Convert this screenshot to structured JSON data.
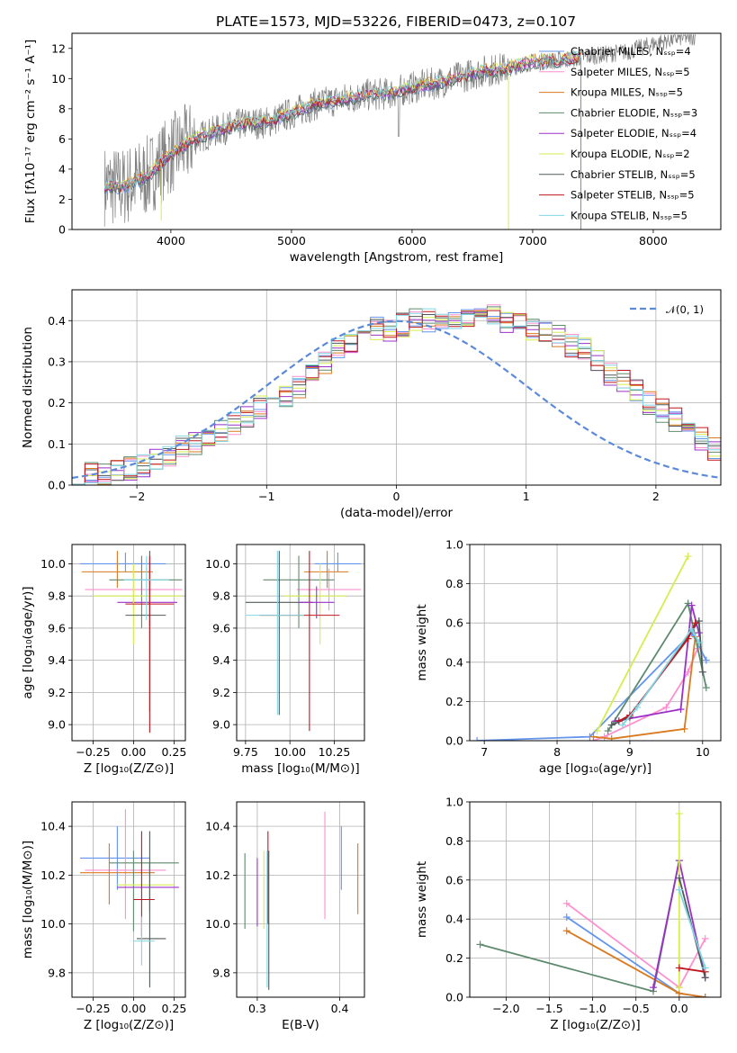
{
  "figure": {
    "title": "PLATE=1573, MJD=53226, FIBERID=0473, z=0.107"
  },
  "colors": {
    "chabrier_miles": "#6495ed",
    "salpeter_miles": "#ff8fcf",
    "kroupa_miles": "#d97a1f",
    "chabrier_elodie": "#5e8a6e",
    "salpeter_elodie": "#9b30c8",
    "kroupa_elodie": "#d6ec4f",
    "chabrier_stelib": "#505a5a",
    "salpeter_stelib": "#c0171f",
    "kroupa_stelib": "#80d6e4",
    "data": "#808080",
    "gaussian": "#5b8ad8"
  },
  "chart_data": [
    {
      "type": "line",
      "title": "PLATE=1573, MJD=53226, FIBERID=0473, z=0.107",
      "xlabel": "wavelength [Angstrom, rest frame]",
      "ylabel": "Flux [fλ10⁻¹⁷ erg cm⁻² s⁻¹ A⁻¹]",
      "xlim": [
        3180,
        8560
      ],
      "ylim": [
        0,
        13
      ],
      "xticks": [
        4000,
        5000,
        6000,
        7000,
        8000
      ],
      "yticks": [
        0,
        2,
        4,
        6,
        8,
        10,
        12
      ],
      "legend_position": "right",
      "legend": [
        "Chabrier MILES, Nₛₛₚ=4",
        "Salpeter MILES, Nₛₛₚ=5",
        "Kroupa MILES, Nₛₛₚ=5",
        "Chabrier ELODIE, Nₛₛₚ=3",
        "Salpeter ELODIE, Nₛₛₚ=4",
        "Kroupa ELODIE, Nₛₛₚ=2",
        "Chabrier STELIB, Nₛₛₚ=5",
        "Salpeter STELIB, Nₛₛₚ=5",
        "Kroupa STELIB, Nₛₛₚ=5"
      ],
      "continuum": {
        "x": [
          3450,
          3600,
          3800,
          4000,
          4200,
          4400,
          4600,
          4800,
          5000,
          5200,
          5400,
          5600,
          5800,
          6000,
          6200,
          6400,
          6600,
          6800,
          7000,
          7200,
          7400,
          7600,
          7800,
          8000,
          8200,
          8350
        ],
        "y": [
          2.9,
          2.8,
          3.5,
          5.0,
          6.0,
          6.6,
          7.0,
          7.1,
          7.7,
          8.3,
          8.6,
          8.9,
          9.0,
          9.4,
          9.7,
          10.1,
          10.5,
          10.7,
          11.1,
          11.2,
          11.4,
          11.6,
          11.8,
          12.3,
          12.7,
          12.8
        ]
      },
      "models_xlim": [
        3450,
        7400
      ]
    },
    {
      "type": "bar",
      "subtype": "step-histogram",
      "xlabel": "(data-model)/error",
      "ylabel": "Normed distribution",
      "xlim": [
        -2.5,
        2.5
      ],
      "ylim": [
        0,
        0.475
      ],
      "xticks": [
        -2,
        -1,
        0,
        1,
        2
      ],
      "yticks": [
        0.0,
        0.1,
        0.2,
        0.3,
        0.4
      ],
      "legend_position": "top-right",
      "legend": [
        "𝒩(0, 1)"
      ],
      "bin_width": 0.1,
      "base_hist": [
        0.02,
        0.025,
        0.03,
        0.035,
        0.04,
        0.05,
        0.06,
        0.07,
        0.09,
        0.1,
        0.11,
        0.13,
        0.15,
        0.17,
        0.19,
        0.21,
        0.22,
        0.24,
        0.27,
        0.3,
        0.33,
        0.35,
        0.37,
        0.38,
        0.38,
        0.39,
        0.4,
        0.4,
        0.41,
        0.4,
        0.4,
        0.4,
        0.41,
        0.4,
        0.39,
        0.38,
        0.37,
        0.36,
        0.34,
        0.33,
        0.3,
        0.27,
        0.25,
        0.23,
        0.2,
        0.18,
        0.16,
        0.14,
        0.11,
        0.09,
        0.08,
        0.07,
        0.06,
        0.05,
        0.04,
        0.04,
        0.03,
        0.03,
        0.03,
        0.03
      ]
    },
    {
      "type": "scatter",
      "subtype": "errorbar",
      "xlabel": "Z [log₁₀(Z/Z⊙)]",
      "ylabel": "age  [log₁₀(age/yr)]",
      "xlim": [
        -0.38,
        0.32
      ],
      "ylim": [
        8.9,
        10.12
      ],
      "xticks": [
        -0.25,
        0.0,
        0.25
      ],
      "xticklabels": [
        "−0.25",
        "0.00",
        "0.25"
      ],
      "yticks": [
        9.0,
        9.2,
        9.4,
        9.6,
        9.8,
        10.0
      ],
      "points": [
        {
          "series": "Chabrier MILES",
          "x": -0.05,
          "xerr": [
            0.28,
            0.25
          ],
          "y": 10.0,
          "yerr": [
            0.05,
            0.07
          ]
        },
        {
          "series": "Kroupa MILES",
          "x": -0.1,
          "xerr": [
            0.22,
            0.22
          ],
          "y": 9.95,
          "yerr": [
            0.1,
            0.13
          ]
        },
        {
          "series": "Salpeter MILES",
          "x": 0.0,
          "xerr": [
            0.3,
            0.3
          ],
          "y": 9.84,
          "yerr": [
            0.13,
            0.13
          ]
        },
        {
          "series": "Chabrier ELODIE",
          "x": 0.05,
          "xerr": [
            0.2,
            0.25
          ],
          "y": 9.9,
          "yerr": [
            0.3,
            0.15
          ]
        },
        {
          "series": "Salpeter ELODIE",
          "x": 0.1,
          "xerr": [
            0.2,
            0.17
          ],
          "y": 9.76,
          "yerr": [
            0.15,
            0.2
          ]
        },
        {
          "series": "Kroupa ELODIE",
          "x": 0.0,
          "xerr": [
            0.25,
            0.3
          ],
          "y": 9.8,
          "yerr": [
            0.3,
            0.2
          ]
        },
        {
          "series": "Chabrier STELIB",
          "x": 0.1,
          "xerr": [
            0.15,
            0.1
          ],
          "y": 9.68,
          "yerr": [
            0.6,
            0.4
          ]
        },
        {
          "series": "Salpeter STELIB",
          "x": 0.1,
          "xerr": [
            0.15,
            0.15
          ],
          "y": 9.75,
          "yerr": [
            0.8,
            0.3
          ]
        },
        {
          "series": "Kroupa STELIB",
          "x": 0.08,
          "xerr": [
            0.14,
            0.14
          ],
          "y": 9.9,
          "yerr": [
            0.25,
            0.15
          ]
        }
      ]
    },
    {
      "type": "scatter",
      "subtype": "errorbar",
      "xlabel": "mass [log₁₀(M/M⊙)]",
      "xlim": [
        9.7,
        10.42
      ],
      "ylim": [
        8.9,
        10.12
      ],
      "xticks": [
        9.75,
        10.0,
        10.25
      ],
      "xticklabels": [
        "9.75",
        "10.00",
        "10.25"
      ],
      "yticks": [
        9.0,
        9.2,
        9.4,
        9.6,
        9.8,
        10.0
      ],
      "points": [
        {
          "series": "Chabrier MILES",
          "x": 10.27,
          "xerr": [
            0.13,
            0.13
          ],
          "y": 10.0,
          "yerr": [
            0.05,
            0.07
          ]
        },
        {
          "series": "Kroupa MILES",
          "x": 10.21,
          "xerr": [
            0.13,
            0.12
          ],
          "y": 9.95,
          "yerr": [
            0.1,
            0.13
          ]
        },
        {
          "series": "Salpeter MILES",
          "x": 10.22,
          "xerr": [
            0.18,
            0.18
          ],
          "y": 9.84,
          "yerr": [
            0.13,
            0.13
          ]
        },
        {
          "series": "Chabrier ELODIE",
          "x": 10.05,
          "xerr": [
            0.2,
            0.2
          ],
          "y": 9.9,
          "yerr": [
            0.3,
            0.15
          ]
        },
        {
          "series": "Kroupa ELODIE",
          "x": 10.17,
          "xerr": [
            0.2,
            0.15
          ],
          "y": 9.8,
          "yerr": [
            0.3,
            0.2
          ]
        },
        {
          "series": "Chabrier STELIB",
          "x": 9.94,
          "xerr": [
            0.19,
            0.19
          ],
          "y": 9.76,
          "yerr": [
            0.7,
            0.32
          ]
        },
        {
          "series": "Salpeter STELIB",
          "x": 10.11,
          "xerr": [
            0.28,
            0.17
          ],
          "y": 9.68,
          "yerr": [
            0.72,
            0.4
          ]
        },
        {
          "series": "Kroupa STELIB",
          "x": 9.93,
          "xerr": [
            0.18,
            0.15
          ],
          "y": 9.68,
          "yerr": [
            0.62,
            0.4
          ]
        },
        {
          "series": "Salpeter ELODIE",
          "x": 10.15,
          "xerr": [
            0.1,
            0.1
          ],
          "y": 9.76,
          "yerr": [
            0.1,
            0.1
          ]
        }
      ]
    },
    {
      "type": "line",
      "xlabel": "age  [log₁₀(age/yr)]",
      "ylabel": "mass weight",
      "xlim": [
        6.8,
        10.25
      ],
      "ylim": [
        0,
        1.0
      ],
      "xticks": [
        7,
        8,
        9,
        10
      ],
      "yticks": [
        0.0,
        0.2,
        0.4,
        0.6,
        0.8,
        1.0
      ],
      "series": [
        {
          "name": "Chabrier MILES",
          "x": [
            6.9,
            8.45,
            9.85,
            10.05
          ],
          "y": [
            0.0,
            0.02,
            0.55,
            0.41
          ]
        },
        {
          "name": "Salpeter MILES",
          "x": [
            8.5,
            8.65,
            9.5,
            9.8,
            9.93
          ],
          "y": [
            0.0,
            0.02,
            0.17,
            0.35,
            0.47
          ]
        },
        {
          "name": "Kroupa MILES",
          "x": [
            8.5,
            8.75,
            9.75,
            9.9
          ],
          "y": [
            0.02,
            0.01,
            0.06,
            0.53
          ]
        },
        {
          "name": "Chabrier ELODIE",
          "x": [
            8.7,
            9.8,
            10.05
          ],
          "y": [
            0.05,
            0.7,
            0.27
          ]
        },
        {
          "name": "Salpeter ELODIE",
          "x": [
            8.8,
            9.7,
            9.85,
            9.95
          ],
          "y": [
            0.1,
            0.16,
            0.69,
            0.55
          ]
        },
        {
          "name": "Kroupa ELODIE",
          "x": [
            8.55,
            9.8
          ],
          "y": [
            0.05,
            0.94
          ]
        },
        {
          "name": "Chabrier STELIB",
          "x": [
            8.75,
            9.0,
            9.95,
            10.0
          ],
          "y": [
            0.08,
            0.12,
            0.61,
            0.35
          ]
        },
        {
          "name": "Salpeter STELIB",
          "x": [
            8.85,
            9.0,
            9.8,
            9.9
          ],
          "y": [
            0.1,
            0.13,
            0.52,
            0.6
          ]
        },
        {
          "name": "Kroupa STELIB",
          "x": [
            8.9,
            9.1,
            9.85,
            9.95
          ],
          "y": [
            0.08,
            0.17,
            0.57,
            0.5
          ]
        }
      ]
    },
    {
      "type": "scatter",
      "subtype": "errorbar",
      "xlabel": "Z [log₁₀(Z/Z⊙)]",
      "ylabel": "mass [log₁₀(M/M⊙)]",
      "xlim": [
        -0.38,
        0.32
      ],
      "ylim": [
        9.7,
        10.5
      ],
      "xticks": [
        -0.25,
        0.0,
        0.25
      ],
      "xticklabels": [
        "−0.25",
        "0.00",
        "0.25"
      ],
      "yticks": [
        9.8,
        10.0,
        10.2,
        10.4
      ],
      "points": [
        {
          "series": "Chabrier MILES",
          "x": -0.1,
          "xerr": [
            0.23,
            0.2
          ],
          "y": 10.27,
          "yerr": [
            0.13,
            0.13
          ]
        },
        {
          "series": "Salpeter MILES",
          "x": -0.05,
          "xerr": [
            0.25,
            0.25
          ],
          "y": 10.22,
          "yerr": [
            0.2,
            0.25
          ]
        },
        {
          "series": "Kroupa MILES",
          "x": -0.15,
          "xerr": [
            0.18,
            0.28
          ],
          "y": 10.21,
          "yerr": [
            0.13,
            0.12
          ]
        },
        {
          "series": "Chabrier ELODIE",
          "x": 0.0,
          "xerr": [
            0.15,
            0.28
          ],
          "y": 10.25,
          "yerr": [
            0.28,
            0.05
          ]
        },
        {
          "series": "Salpeter ELODIE",
          "x": 0.1,
          "xerr": [
            0.2,
            0.18
          ],
          "y": 10.15,
          "yerr": [
            0.1,
            0.1
          ]
        },
        {
          "series": "Kroupa ELODIE",
          "x": 0.1,
          "xerr": [
            0.2,
            0.15
          ],
          "y": 10.16,
          "yerr": [
            0.18,
            0.15
          ]
        },
        {
          "series": "Chabrier STELIB",
          "x": 0.1,
          "xerr": [
            0.08,
            0.1
          ],
          "y": 9.94,
          "yerr": [
            0.2,
            0.44
          ]
        },
        {
          "series": "Salpeter STELIB",
          "x": 0.05,
          "xerr": [
            0.05,
            0.08
          ],
          "y": 10.1,
          "yerr": [
            0.15,
            0.28
          ]
        },
        {
          "series": "Kroupa STELIB",
          "x": 0.05,
          "xerr": [
            0.05,
            0.08
          ],
          "y": 9.93,
          "yerr": [
            0.1,
            0.1
          ]
        }
      ]
    },
    {
      "type": "scatter",
      "subtype": "errorbar",
      "xlabel": "E(B-V)",
      "xlim": [
        0.275,
        0.43
      ],
      "ylim": [
        9.7,
        10.5
      ],
      "xticks": [
        0.3,
        0.4
      ],
      "xticklabels": [
        "0.3",
        "0.4"
      ],
      "yticks": [
        9.8,
        10.0,
        10.2,
        10.4
      ],
      "points": [
        {
          "series": "Chabrier ELODIE",
          "x": 0.285,
          "y": 10.13,
          "yerr": [
            0.15,
            0.16
          ]
        },
        {
          "series": "Salpeter ELODIE",
          "x": 0.3,
          "y": 10.12,
          "yerr": [
            0.13,
            0.15
          ]
        },
        {
          "series": "Kroupa ELODIE",
          "x": 0.308,
          "y": 10.14,
          "yerr": [
            0.16,
            0.16
          ]
        },
        {
          "series": "Salpeter STELIB",
          "x": 0.313,
          "y": 10.15,
          "yerr": [
            0.15,
            0.23
          ]
        },
        {
          "series": "Chabrier STELIB",
          "x": 0.314,
          "y": 10.0,
          "yerr": [
            0.27,
            0.3
          ]
        },
        {
          "series": "Kroupa STELIB",
          "x": 0.312,
          "y": 10.0,
          "yerr": [
            0.26,
            0.3
          ]
        },
        {
          "series": "Salpeter MILES",
          "x": 0.382,
          "y": 10.22,
          "yerr": [
            0.2,
            0.24
          ]
        },
        {
          "series": "Chabrier MILES",
          "x": 0.402,
          "y": 10.27,
          "yerr": [
            0.13,
            0.13
          ]
        },
        {
          "series": "Kroupa MILES",
          "x": 0.422,
          "y": 10.18,
          "yerr": [
            0.14,
            0.15
          ]
        }
      ]
    },
    {
      "type": "line",
      "xlabel": "Z [log₁₀(Z/Z⊙)]",
      "ylabel": "mass weight",
      "xlim": [
        -2.42,
        0.48
      ],
      "ylim": [
        0,
        1.0
      ],
      "xticks": [
        -2.0,
        -1.5,
        -1.0,
        -0.5,
        0.0
      ],
      "xticklabels": [
        "−2.0",
        "−1.5",
        "−1.0",
        "−0.5",
        "0.0"
      ],
      "yticks": [
        0.0,
        0.2,
        0.4,
        0.6,
        0.8,
        1.0
      ],
      "series": [
        {
          "name": "Chabrier MILES",
          "x": [
            -1.3,
            0.0,
            0.3
          ],
          "y": [
            0.41,
            0.02,
            0.0
          ]
        },
        {
          "name": "Salpeter MILES",
          "x": [
            -1.3,
            0.0,
            0.3
          ],
          "y": [
            0.48,
            0.05,
            0.3
          ]
        },
        {
          "name": "Kroupa MILES",
          "x": [
            -1.3,
            0.0,
            0.3
          ],
          "y": [
            0.34,
            0.02,
            0.0
          ]
        },
        {
          "name": "Chabrier ELODIE",
          "x": [
            -2.3,
            -0.3,
            0.0
          ],
          "y": [
            0.27,
            0.03,
            0.7
          ]
        },
        {
          "name": "Salpeter ELODIE",
          "x": [
            -0.3,
            0.0,
            0.3
          ],
          "y": [
            0.05,
            0.7,
            0.1
          ]
        },
        {
          "name": "Kroupa ELODIE",
          "x": [
            0.0,
            0.0
          ],
          "y": [
            0.05,
            0.94
          ]
        },
        {
          "name": "Chabrier STELIB",
          "x": [
            0.0,
            0.3
          ],
          "y": [
            0.61,
            0.1
          ]
        },
        {
          "name": "Salpeter STELIB",
          "x": [
            0.0,
            0.3
          ],
          "y": [
            0.15,
            0.13
          ]
        },
        {
          "name": "Kroupa STELIB",
          "x": [
            0.0,
            0.3
          ],
          "y": [
            0.55,
            0.15
          ]
        }
      ]
    }
  ]
}
